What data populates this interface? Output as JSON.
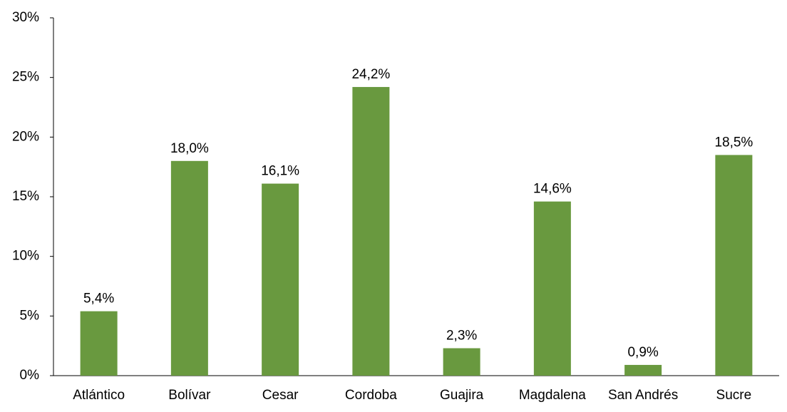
{
  "chart_data": {
    "type": "bar",
    "categories": [
      "Atlántico",
      "Bolívar",
      "Cesar",
      "Cordoba",
      "Guajira",
      "Magdalena",
      "San Andrés",
      "Sucre"
    ],
    "values": [
      5.4,
      18.0,
      16.1,
      24.2,
      2.3,
      14.6,
      0.9,
      18.5
    ],
    "value_labels": [
      "5,4%",
      "18,0%",
      "16,1%",
      "24,2%",
      "2,3%",
      "14,6%",
      "0,9%",
      "18,5%"
    ],
    "color": "#69993f",
    "ylim": [
      0,
      30
    ],
    "yticks": [
      {
        "value": 0,
        "label": "0%"
      },
      {
        "value": 5,
        "label": "5%"
      },
      {
        "value": 10,
        "label": "10%"
      },
      {
        "value": 15,
        "label": "15%"
      },
      {
        "value": 20,
        "label": "20%"
      },
      {
        "value": 25,
        "label": "25%"
      },
      {
        "value": 30,
        "label": "30%"
      }
    ],
    "grid": false
  }
}
